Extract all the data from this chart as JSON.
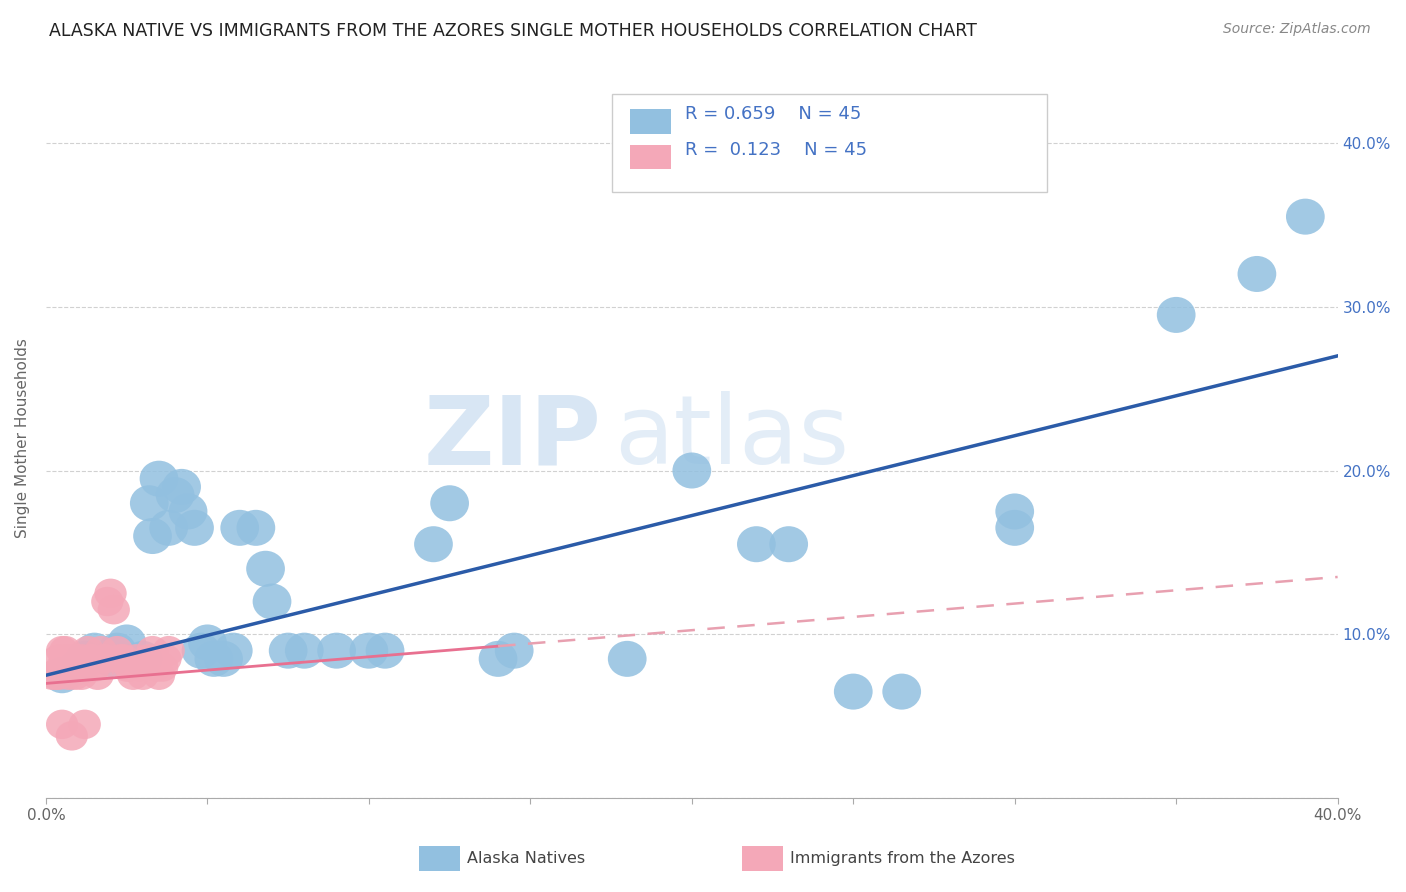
{
  "title": "ALASKA NATIVE VS IMMIGRANTS FROM THE AZORES SINGLE MOTHER HOUSEHOLDS CORRELATION CHART",
  "source": "Source: ZipAtlas.com",
  "ylabel": "Single Mother Households",
  "xlim": [
    0,
    0.4
  ],
  "ylim": [
    0,
    0.44
  ],
  "ytick_vals": [
    0.0,
    0.1,
    0.2,
    0.3,
    0.4
  ],
  "ytick_labels_left": [
    "",
    "",
    "",
    "",
    ""
  ],
  "ytick_labels_right": [
    "",
    "10.0%",
    "20.0%",
    "30.0%",
    "40.0%"
  ],
  "xtick_vals": [
    0.0,
    0.05,
    0.1,
    0.15,
    0.2,
    0.25,
    0.3,
    0.35,
    0.4
  ],
  "xtick_labels": [
    "0.0%",
    "",
    "",
    "",
    "",
    "",
    "",
    "",
    "40.0%"
  ],
  "blue_color": "#92C0E0",
  "pink_color": "#F4A8B8",
  "blue_line_color": "#2B5BA8",
  "pink_line_color": "#E87090",
  "pink_dash_color": "#E8A0B0",
  "right_axis_color": "#4472C4",
  "legend_text_color": "#4472C4",
  "watermark_color": "#C8DCF0",
  "R_blue": 0.659,
  "R_pink": 0.123,
  "N": 45,
  "blue_line_start_y": 0.075,
  "blue_line_end_y": 0.27,
  "pink_line_start_y": 0.07,
  "pink_line_end_y": 0.135,
  "blue_scatter": [
    [
      0.005,
      0.075
    ],
    [
      0.01,
      0.08
    ],
    [
      0.012,
      0.085
    ],
    [
      0.015,
      0.09
    ],
    [
      0.02,
      0.085
    ],
    [
      0.022,
      0.09
    ],
    [
      0.025,
      0.095
    ],
    [
      0.03,
      0.085
    ],
    [
      0.032,
      0.18
    ],
    [
      0.033,
      0.16
    ],
    [
      0.035,
      0.195
    ],
    [
      0.038,
      0.165
    ],
    [
      0.04,
      0.185
    ],
    [
      0.042,
      0.19
    ],
    [
      0.044,
      0.175
    ],
    [
      0.046,
      0.165
    ],
    [
      0.048,
      0.09
    ],
    [
      0.05,
      0.095
    ],
    [
      0.052,
      0.085
    ],
    [
      0.055,
      0.085
    ],
    [
      0.058,
      0.09
    ],
    [
      0.06,
      0.165
    ],
    [
      0.065,
      0.165
    ],
    [
      0.068,
      0.14
    ],
    [
      0.07,
      0.12
    ],
    [
      0.075,
      0.09
    ],
    [
      0.08,
      0.09
    ],
    [
      0.09,
      0.09
    ],
    [
      0.1,
      0.09
    ],
    [
      0.105,
      0.09
    ],
    [
      0.12,
      0.155
    ],
    [
      0.125,
      0.18
    ],
    [
      0.14,
      0.085
    ],
    [
      0.145,
      0.09
    ],
    [
      0.18,
      0.085
    ],
    [
      0.2,
      0.2
    ],
    [
      0.22,
      0.155
    ],
    [
      0.23,
      0.155
    ],
    [
      0.25,
      0.065
    ],
    [
      0.265,
      0.065
    ],
    [
      0.3,
      0.165
    ],
    [
      0.3,
      0.175
    ],
    [
      0.35,
      0.295
    ],
    [
      0.375,
      0.32
    ],
    [
      0.39,
      0.355
    ]
  ],
  "pink_scatter": [
    [
      0.002,
      0.075
    ],
    [
      0.003,
      0.075
    ],
    [
      0.004,
      0.075
    ],
    [
      0.004,
      0.085
    ],
    [
      0.005,
      0.08
    ],
    [
      0.005,
      0.09
    ],
    [
      0.006,
      0.08
    ],
    [
      0.006,
      0.09
    ],
    [
      0.007,
      0.075
    ],
    [
      0.007,
      0.085
    ],
    [
      0.008,
      0.08
    ],
    [
      0.009,
      0.075
    ],
    [
      0.009,
      0.085
    ],
    [
      0.01,
      0.08
    ],
    [
      0.011,
      0.075
    ],
    [
      0.011,
      0.085
    ],
    [
      0.012,
      0.08
    ],
    [
      0.013,
      0.09
    ],
    [
      0.014,
      0.085
    ],
    [
      0.015,
      0.08
    ],
    [
      0.016,
      0.075
    ],
    [
      0.017,
      0.09
    ],
    [
      0.018,
      0.085
    ],
    [
      0.019,
      0.12
    ],
    [
      0.02,
      0.125
    ],
    [
      0.021,
      0.115
    ],
    [
      0.022,
      0.09
    ],
    [
      0.023,
      0.085
    ],
    [
      0.024,
      0.085
    ],
    [
      0.025,
      0.08
    ],
    [
      0.026,
      0.08
    ],
    [
      0.027,
      0.075
    ],
    [
      0.028,
      0.085
    ],
    [
      0.029,
      0.08
    ],
    [
      0.03,
      0.075
    ],
    [
      0.032,
      0.085
    ],
    [
      0.033,
      0.09
    ],
    [
      0.034,
      0.08
    ],
    [
      0.035,
      0.075
    ],
    [
      0.036,
      0.08
    ],
    [
      0.037,
      0.085
    ],
    [
      0.038,
      0.09
    ],
    [
      0.005,
      0.045
    ],
    [
      0.008,
      0.038
    ],
    [
      0.012,
      0.045
    ]
  ]
}
